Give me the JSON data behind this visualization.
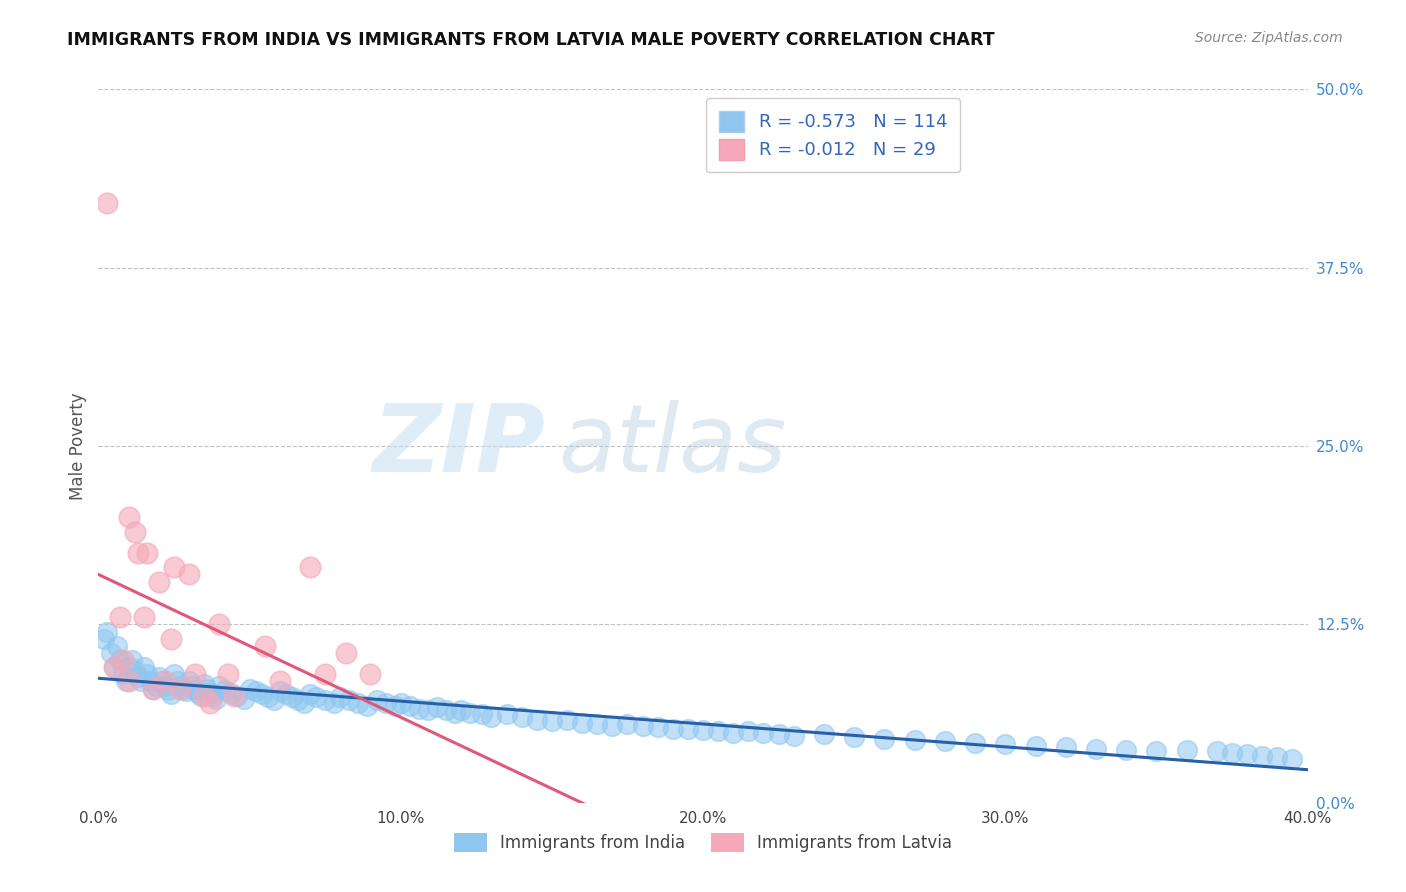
{
  "title": "IMMIGRANTS FROM INDIA VS IMMIGRANTS FROM LATVIA MALE POVERTY CORRELATION CHART",
  "source": "Source: ZipAtlas.com",
  "ylabel": "Male Poverty",
  "legend_labels": [
    "Immigrants from India",
    "Immigrants from Latvia"
  ],
  "legend_r": [
    -0.573,
    -0.012
  ],
  "legend_n": [
    114,
    29
  ],
  "xlim": [
    0.0,
    0.4
  ],
  "ylim": [
    0.0,
    0.5
  ],
  "xticks": [
    0.0,
    0.1,
    0.2,
    0.3,
    0.4
  ],
  "yticks_right": [
    0.0,
    0.125,
    0.25,
    0.375,
    0.5
  ],
  "india_color": "#8ec6f0",
  "latvia_color": "#f4a8b8",
  "india_line_color": "#2860a8",
  "latvia_line_color": "#e05878",
  "background_color": "#ffffff",
  "grid_color": "#bbbbbb",
  "watermark_zip": "ZIP",
  "watermark_atlas": "atlas",
  "india_x": [
    0.002,
    0.003,
    0.004,
    0.005,
    0.006,
    0.007,
    0.008,
    0.009,
    0.01,
    0.011,
    0.012,
    0.013,
    0.014,
    0.015,
    0.016,
    0.017,
    0.018,
    0.019,
    0.02,
    0.021,
    0.022,
    0.023,
    0.024,
    0.025,
    0.026,
    0.027,
    0.028,
    0.029,
    0.03,
    0.031,
    0.032,
    0.033,
    0.034,
    0.035,
    0.036,
    0.037,
    0.038,
    0.039,
    0.04,
    0.042,
    0.044,
    0.046,
    0.048,
    0.05,
    0.052,
    0.054,
    0.056,
    0.058,
    0.06,
    0.062,
    0.064,
    0.066,
    0.068,
    0.07,
    0.072,
    0.075,
    0.078,
    0.08,
    0.083,
    0.086,
    0.089,
    0.092,
    0.095,
    0.098,
    0.1,
    0.103,
    0.106,
    0.109,
    0.112,
    0.115,
    0.118,
    0.12,
    0.123,
    0.127,
    0.13,
    0.135,
    0.14,
    0.145,
    0.15,
    0.155,
    0.16,
    0.165,
    0.17,
    0.175,
    0.18,
    0.185,
    0.19,
    0.195,
    0.2,
    0.205,
    0.21,
    0.215,
    0.22,
    0.225,
    0.23,
    0.24,
    0.25,
    0.26,
    0.27,
    0.28,
    0.29,
    0.3,
    0.31,
    0.32,
    0.33,
    0.34,
    0.35,
    0.36,
    0.37,
    0.375,
    0.38,
    0.385,
    0.39,
    0.395
  ],
  "india_y": [
    0.115,
    0.12,
    0.105,
    0.095,
    0.11,
    0.1,
    0.09,
    0.085,
    0.095,
    0.1,
    0.092,
    0.088,
    0.085,
    0.095,
    0.09,
    0.085,
    0.08,
    0.082,
    0.088,
    0.085,
    0.082,
    0.079,
    0.076,
    0.09,
    0.085,
    0.082,
    0.08,
    0.078,
    0.085,
    0.082,
    0.079,
    0.077,
    0.075,
    0.083,
    0.08,
    0.077,
    0.075,
    0.073,
    0.082,
    0.079,
    0.077,
    0.075,
    0.073,
    0.08,
    0.078,
    0.076,
    0.074,
    0.072,
    0.078,
    0.076,
    0.074,
    0.072,
    0.07,
    0.076,
    0.074,
    0.072,
    0.07,
    0.074,
    0.072,
    0.07,
    0.068,
    0.072,
    0.07,
    0.068,
    0.07,
    0.068,
    0.066,
    0.065,
    0.067,
    0.065,
    0.063,
    0.065,
    0.063,
    0.062,
    0.06,
    0.062,
    0.06,
    0.058,
    0.057,
    0.058,
    0.056,
    0.055,
    0.054,
    0.055,
    0.054,
    0.053,
    0.052,
    0.052,
    0.051,
    0.05,
    0.049,
    0.05,
    0.049,
    0.048,
    0.047,
    0.048,
    0.046,
    0.045,
    0.044,
    0.043,
    0.042,
    0.041,
    0.04,
    0.039,
    0.038,
    0.037,
    0.036,
    0.037,
    0.036,
    0.035,
    0.034,
    0.033,
    0.032,
    0.031
  ],
  "latvia_x": [
    0.003,
    0.005,
    0.007,
    0.008,
    0.01,
    0.012,
    0.013,
    0.015,
    0.016,
    0.018,
    0.02,
    0.022,
    0.024,
    0.025,
    0.027,
    0.03,
    0.032,
    0.035,
    0.037,
    0.04,
    0.043,
    0.045,
    0.055,
    0.06,
    0.07,
    0.075,
    0.082,
    0.09,
    0.01
  ],
  "latvia_y": [
    0.42,
    0.095,
    0.13,
    0.1,
    0.085,
    0.19,
    0.175,
    0.13,
    0.175,
    0.08,
    0.155,
    0.085,
    0.115,
    0.165,
    0.08,
    0.16,
    0.09,
    0.075,
    0.07,
    0.125,
    0.09,
    0.075,
    0.11,
    0.085,
    0.165,
    0.09,
    0.105,
    0.09,
    0.2
  ]
}
